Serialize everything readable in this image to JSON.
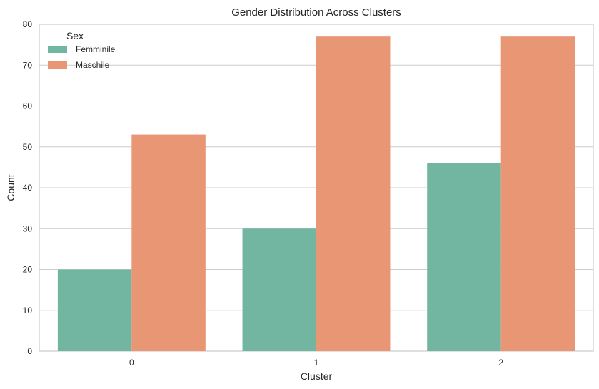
{
  "chart_data": {
    "type": "bar",
    "title": "Gender Distribution Across Clusters",
    "xlabel": "Cluster",
    "ylabel": "Count",
    "categories": [
      "0",
      "1",
      "2"
    ],
    "series": [
      {
        "name": "Femminile",
        "values": [
          20,
          30,
          46
        ],
        "color": "#72b6a1"
      },
      {
        "name": "Maschile",
        "values": [
          53,
          77,
          77
        ],
        "color": "#e99675"
      }
    ],
    "ylim": [
      0,
      80
    ],
    "yticks": [
      0,
      10,
      20,
      30,
      40,
      50,
      60,
      70,
      80
    ],
    "grid": "horizontal",
    "legend": {
      "title": "Sex",
      "placement": "top-left"
    }
  }
}
